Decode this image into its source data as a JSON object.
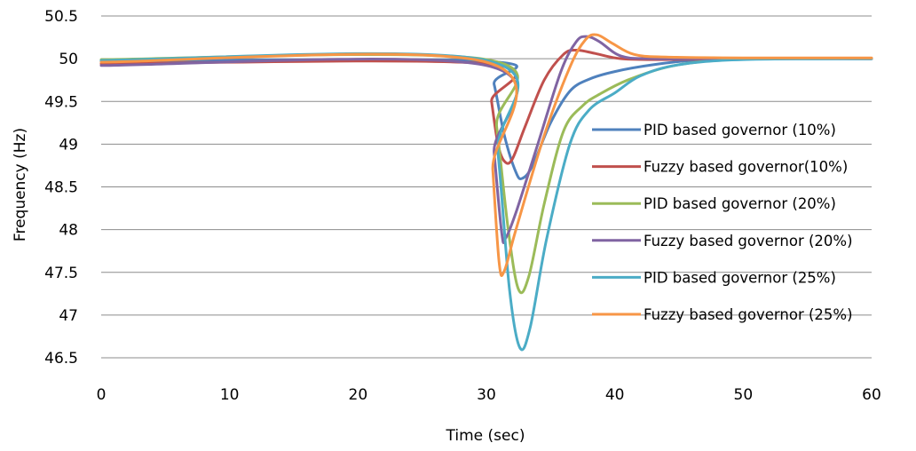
{
  "chart_data": {
    "type": "line",
    "title": "",
    "xlabel": "Time (sec)",
    "ylabel": "Frequency (Hz)",
    "xlim": [
      0,
      60
    ],
    "ylim": [
      46.5,
      50.5
    ],
    "x_ticks": [
      0,
      10,
      20,
      30,
      40,
      50,
      60
    ],
    "x_tick_labels": [
      "0",
      "10",
      "20",
      "30",
      "40",
      "50",
      "60"
    ],
    "y_ticks": [
      46.5,
      47,
      47.5,
      48,
      48.5,
      49,
      49.5,
      50,
      50.5
    ],
    "y_tick_labels": [
      "46.5",
      "47",
      "47.5",
      "48",
      "48.5",
      "49",
      "49.5",
      "50",
      "50.5"
    ],
    "grid": "horizontal",
    "legend_position": "right",
    "series": [
      {
        "name": "PID based  governor (10%)",
        "color": "#4F81BD",
        "points": [
          [
            0,
            49.97
          ],
          [
            30,
            49.97
          ],
          [
            30.6,
            49.7
          ],
          [
            31.4,
            49.1
          ],
          [
            32.3,
            48.67
          ],
          [
            32.8,
            48.6
          ],
          [
            33.6,
            48.75
          ],
          [
            35,
            49.25
          ],
          [
            36.5,
            49.62
          ],
          [
            38,
            49.76
          ],
          [
            40,
            49.85
          ],
          [
            43,
            49.93
          ],
          [
            46,
            49.98
          ],
          [
            50,
            50.0
          ],
          [
            60,
            50.0
          ]
        ]
      },
      {
        "name": "Fuzzy based governor(10%)",
        "color": "#C0504D",
        "points": [
          [
            0,
            49.94
          ],
          [
            30,
            49.94
          ],
          [
            30.4,
            49.5
          ],
          [
            30.9,
            49.0
          ],
          [
            31.4,
            48.8
          ],
          [
            32.0,
            48.82
          ],
          [
            33.0,
            49.2
          ],
          [
            34.5,
            49.75
          ],
          [
            36.0,
            50.05
          ],
          [
            37.0,
            50.1
          ],
          [
            38.5,
            50.06
          ],
          [
            40.5,
            50.0
          ],
          [
            44,
            49.99
          ],
          [
            50,
            50.0
          ],
          [
            60,
            50.0
          ]
        ]
      },
      {
        "name": "PID based  governor (20%)",
        "color": "#9BBB59",
        "points": [
          [
            0,
            49.99
          ],
          [
            30,
            49.99
          ],
          [
            30.8,
            49.2
          ],
          [
            31.7,
            48.0
          ],
          [
            32.5,
            47.3
          ],
          [
            33.3,
            47.45
          ],
          [
            34.5,
            48.3
          ],
          [
            36.0,
            49.15
          ],
          [
            37.5,
            49.45
          ],
          [
            39,
            49.6
          ],
          [
            41,
            49.75
          ],
          [
            44,
            49.9
          ],
          [
            47,
            49.97
          ],
          [
            50,
            50.0
          ],
          [
            60,
            50.0
          ]
        ]
      },
      {
        "name": "Fuzzy based governor (20%)",
        "color": "#8064A2",
        "points": [
          [
            0,
            49.92
          ],
          [
            30,
            49.92
          ],
          [
            30.6,
            48.9
          ],
          [
            31.2,
            47.95
          ],
          [
            31.5,
            47.9
          ],
          [
            32.3,
            48.2
          ],
          [
            34.0,
            49.0
          ],
          [
            35.8,
            49.85
          ],
          [
            37.0,
            50.2
          ],
          [
            37.8,
            50.26
          ],
          [
            38.8,
            50.2
          ],
          [
            40.5,
            50.03
          ],
          [
            43,
            50.0
          ],
          [
            50,
            50.0
          ],
          [
            60,
            50.0
          ]
        ]
      },
      {
        "name": "PID based governor (25%)",
        "color": "#4BACC6",
        "points": [
          [
            0,
            49.98
          ],
          [
            30,
            49.98
          ],
          [
            30.9,
            48.9
          ],
          [
            31.8,
            47.3
          ],
          [
            32.6,
            46.62
          ],
          [
            33.4,
            46.85
          ],
          [
            34.7,
            47.9
          ],
          [
            36.5,
            49.0
          ],
          [
            38.0,
            49.4
          ],
          [
            40,
            49.6
          ],
          [
            42,
            49.8
          ],
          [
            45,
            49.93
          ],
          [
            50,
            49.99
          ],
          [
            60,
            50.0
          ]
        ]
      },
      {
        "name": "Fuzzy based governor (25%)",
        "color": "#F79646",
        "points": [
          [
            0,
            49.96
          ],
          [
            30,
            49.96
          ],
          [
            30.5,
            48.7
          ],
          [
            31.0,
            47.6
          ],
          [
            31.4,
            47.52
          ],
          [
            32.3,
            48.0
          ],
          [
            34.5,
            49.1
          ],
          [
            36.5,
            49.9
          ],
          [
            37.7,
            50.22
          ],
          [
            38.6,
            50.28
          ],
          [
            39.8,
            50.18
          ],
          [
            41.5,
            50.05
          ],
          [
            44,
            50.02
          ],
          [
            50,
            50.01
          ],
          [
            60,
            50.01
          ]
        ]
      }
    ]
  }
}
